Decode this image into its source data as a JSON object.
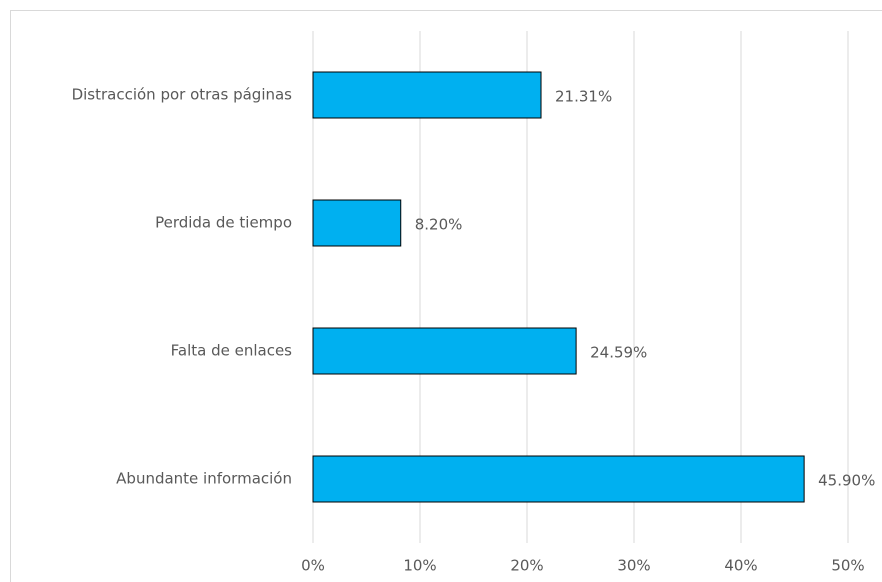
{
  "chart_data": {
    "type": "bar",
    "orientation": "horizontal",
    "categories": [
      "Distracción por otras páginas",
      "Perdida de tiempo",
      "Falta de enlaces",
      "Abundante información"
    ],
    "values": [
      21.31,
      8.2,
      24.59,
      45.9
    ],
    "value_labels": [
      "21.31%",
      "8.20%",
      "24.59%",
      "45.90%"
    ],
    "color": "#00b0f0",
    "xlim": [
      0,
      50
    ],
    "xticks": [
      {
        "value": 0,
        "label": "0%"
      },
      {
        "value": 10,
        "label": "10%"
      },
      {
        "value": 20,
        "label": "20%"
      },
      {
        "value": 30,
        "label": "30%"
      },
      {
        "value": 40,
        "label": "40%"
      },
      {
        "value": 50,
        "label": "50%"
      }
    ],
    "grid": true
  }
}
